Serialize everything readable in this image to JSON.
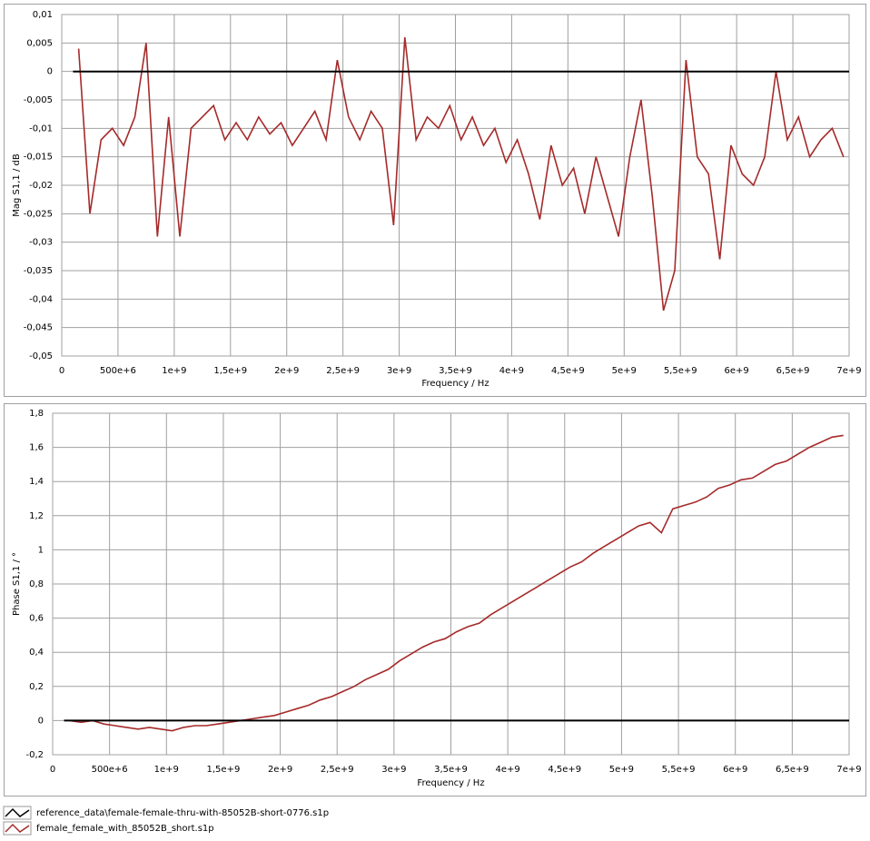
{
  "chart_data": [
    {
      "type": "line",
      "ylabel": "Mag S1,1 / dB",
      "xlabel": "Frequency / Hz",
      "xlim": [
        0,
        7000000000
      ],
      "ylim": [
        -0.05,
        0.01
      ],
      "grid": true,
      "xticks": [
        0,
        {
          "value": 500000000,
          "label": "500e+6"
        },
        {
          "value": 1000000000,
          "label": "1e+9"
        },
        {
          "value": 1500000000,
          "label": "1,5e+9"
        },
        {
          "value": 2000000000,
          "label": "2e+9"
        },
        {
          "value": 2500000000,
          "label": "2,5e+9"
        },
        {
          "value": 3000000000,
          "label": "3e+9"
        },
        {
          "value": 3500000000,
          "label": "3,5e+9"
        },
        {
          "value": 4000000000,
          "label": "4e+9"
        },
        {
          "value": 4500000000,
          "label": "4,5e+9"
        },
        {
          "value": 5000000000,
          "label": "5e+9"
        },
        {
          "value": 5500000000,
          "label": "5,5e+9"
        },
        {
          "value": 6000000000,
          "label": "6e+9"
        },
        {
          "value": 6500000000,
          "label": "6,5e+9"
        },
        {
          "value": 7000000000,
          "label": "7e+9"
        }
      ],
      "yticks": [
        {
          "value": 0.01,
          "label": "0,01"
        },
        {
          "value": 0.005,
          "label": "0,005"
        },
        0,
        {
          "value": -0.005,
          "label": "-0,005"
        },
        {
          "value": -0.01,
          "label": "-0,01"
        },
        {
          "value": -0.015,
          "label": "-0,015"
        },
        {
          "value": -0.02,
          "label": "-0,02"
        },
        {
          "value": -0.025,
          "label": "-0,025"
        },
        {
          "value": -0.03,
          "label": "-0,03"
        },
        {
          "value": -0.035,
          "label": "-0,035"
        },
        {
          "value": -0.04,
          "label": "-0,04"
        },
        {
          "value": -0.045,
          "label": "-0,045"
        },
        {
          "value": -0.05,
          "label": "-0,05"
        }
      ],
      "series": [
        {
          "name": "reference_data\\female-female-thru-with-85052B-short-0776.s1p",
          "color": "#000000",
          "x": [
            100000000,
            7000000000
          ],
          "values": [
            0,
            0
          ]
        },
        {
          "name": "female_female_with_85052B_short.s1p",
          "color": "#a52a2a",
          "x": [
            150000000,
            250000000,
            350000000,
            450000000,
            550000000,
            650000000,
            750000000,
            850000000,
            950000000,
            1050000000,
            1150000000,
            1250000000,
            1350000000,
            1450000000,
            1550000000,
            1650000000,
            1750000000,
            1850000000,
            1950000000,
            2050000000,
            2150000000,
            2250000000,
            2350000000,
            2450000000,
            2550000000,
            2650000000,
            2750000000,
            2850000000,
            2950000000,
            3050000000,
            3150000000,
            3250000000,
            3350000000,
            3450000000,
            3550000000,
            3650000000,
            3750000000,
            3850000000,
            3950000000,
            4050000000,
            4150000000,
            4250000000,
            4350000000,
            4450000000,
            4550000000,
            4650000000,
            4750000000,
            4850000000,
            4950000000,
            5050000000,
            5150000000,
            5250000000,
            5350000000,
            5450000000,
            5550000000,
            5650000000,
            5750000000,
            5850000000,
            5950000000,
            6050000000,
            6150000000,
            6250000000,
            6350000000,
            6450000000,
            6550000000,
            6650000000,
            6750000000,
            6850000000,
            6950000000
          ],
          "values": [
            0.004,
            -0.025,
            -0.012,
            -0.01,
            -0.013,
            -0.008,
            0.005,
            -0.029,
            -0.008,
            -0.029,
            -0.01,
            -0.008,
            -0.006,
            -0.012,
            -0.009,
            -0.012,
            -0.008,
            -0.011,
            -0.009,
            -0.013,
            -0.01,
            -0.007,
            -0.012,
            0.002,
            -0.008,
            -0.012,
            -0.007,
            -0.01,
            -0.027,
            0.006,
            -0.012,
            -0.008,
            -0.01,
            -0.006,
            -0.012,
            -0.008,
            -0.013,
            -0.01,
            -0.016,
            -0.012,
            -0.018,
            -0.026,
            -0.013,
            -0.02,
            -0.017,
            -0.025,
            -0.015,
            -0.022,
            -0.029,
            -0.015,
            -0.005,
            -0.022,
            -0.042,
            -0.035,
            0.002,
            -0.015,
            -0.018,
            -0.033,
            -0.013,
            -0.018,
            -0.02,
            -0.015,
            0.0,
            -0.012,
            -0.008,
            -0.015,
            -0.012,
            -0.01,
            -0.015
          ]
        }
      ]
    },
    {
      "type": "line",
      "ylabel": "Phase S1,1 / °",
      "xlabel": "Frequency / Hz",
      "xlim": [
        0,
        7000000000
      ],
      "ylim": [
        -0.2,
        1.8
      ],
      "grid": true,
      "xticks": [
        0,
        {
          "value": 500000000,
          "label": "500e+6"
        },
        {
          "value": 1000000000,
          "label": "1e+9"
        },
        {
          "value": 1500000000,
          "label": "1,5e+9"
        },
        {
          "value": 2000000000,
          "label": "2e+9"
        },
        {
          "value": 2500000000,
          "label": "2,5e+9"
        },
        {
          "value": 3000000000,
          "label": "3e+9"
        },
        {
          "value": 3500000000,
          "label": "3,5e+9"
        },
        {
          "value": 4000000000,
          "label": "4e+9"
        },
        {
          "value": 4500000000,
          "label": "4,5e+9"
        },
        {
          "value": 5000000000,
          "label": "5e+9"
        },
        {
          "value": 5500000000,
          "label": "5,5e+9"
        },
        {
          "value": 6000000000,
          "label": "6e+9"
        },
        {
          "value": 6500000000,
          "label": "6,5e+9"
        },
        {
          "value": 7000000000,
          "label": "7e+9"
        }
      ],
      "yticks": [
        {
          "value": 1.8,
          "label": "1,8"
        },
        {
          "value": 1.6,
          "label": "1,6"
        },
        {
          "value": 1.4,
          "label": "1,4"
        },
        {
          "value": 1.2,
          "label": "1,2"
        },
        1,
        {
          "value": 0.8,
          "label": "0,8"
        },
        {
          "value": 0.6,
          "label": "0,6"
        },
        {
          "value": 0.4,
          "label": "0,4"
        },
        {
          "value": 0.2,
          "label": "0,2"
        },
        0,
        {
          "value": -0.2,
          "label": "-0,2"
        }
      ],
      "series": [
        {
          "color": "#000000",
          "x": [
            100000000,
            7000000000
          ],
          "values": [
            0,
            0
          ]
        },
        {
          "color": "#a52a2a",
          "x": [
            150000000,
            250000000,
            350000000,
            450000000,
            550000000,
            650000000,
            750000000,
            850000000,
            950000000,
            1050000000,
            1150000000,
            1250000000,
            1350000000,
            1450000000,
            1550000000,
            1650000000,
            1750000000,
            1850000000,
            1950000000,
            2050000000,
            2150000000,
            2250000000,
            2350000000,
            2450000000,
            2550000000,
            2650000000,
            2750000000,
            2850000000,
            2950000000,
            3050000000,
            3150000000,
            3250000000,
            3350000000,
            3450000000,
            3550000000,
            3650000000,
            3750000000,
            3850000000,
            3950000000,
            4050000000,
            4150000000,
            4250000000,
            4350000000,
            4450000000,
            4550000000,
            4650000000,
            4750000000,
            4850000000,
            4950000000,
            5050000000,
            5150000000,
            5250000000,
            5350000000,
            5450000000,
            5550000000,
            5650000000,
            5750000000,
            5850000000,
            5950000000,
            6050000000,
            6150000000,
            6250000000,
            6350000000,
            6450000000,
            6550000000,
            6650000000,
            6750000000,
            6850000000,
            6950000000
          ],
          "values": [
            0.0,
            -0.01,
            0.0,
            -0.02,
            -0.03,
            -0.04,
            -0.05,
            -0.04,
            -0.05,
            -0.06,
            -0.04,
            -0.03,
            -0.03,
            -0.02,
            -0.01,
            0.0,
            0.01,
            0.02,
            0.03,
            0.05,
            0.07,
            0.09,
            0.12,
            0.14,
            0.17,
            0.2,
            0.24,
            0.27,
            0.3,
            0.35,
            0.39,
            0.43,
            0.46,
            0.48,
            0.52,
            0.55,
            0.57,
            0.62,
            0.66,
            0.7,
            0.74,
            0.78,
            0.82,
            0.86,
            0.9,
            0.93,
            0.98,
            1.02,
            1.06,
            1.1,
            1.14,
            1.16,
            1.1,
            1.24,
            1.26,
            1.28,
            1.31,
            1.36,
            1.38,
            1.41,
            1.42,
            1.46,
            1.5,
            1.52,
            1.56,
            1.6,
            1.63,
            1.66,
            1.67
          ]
        }
      ]
    }
  ]
}
